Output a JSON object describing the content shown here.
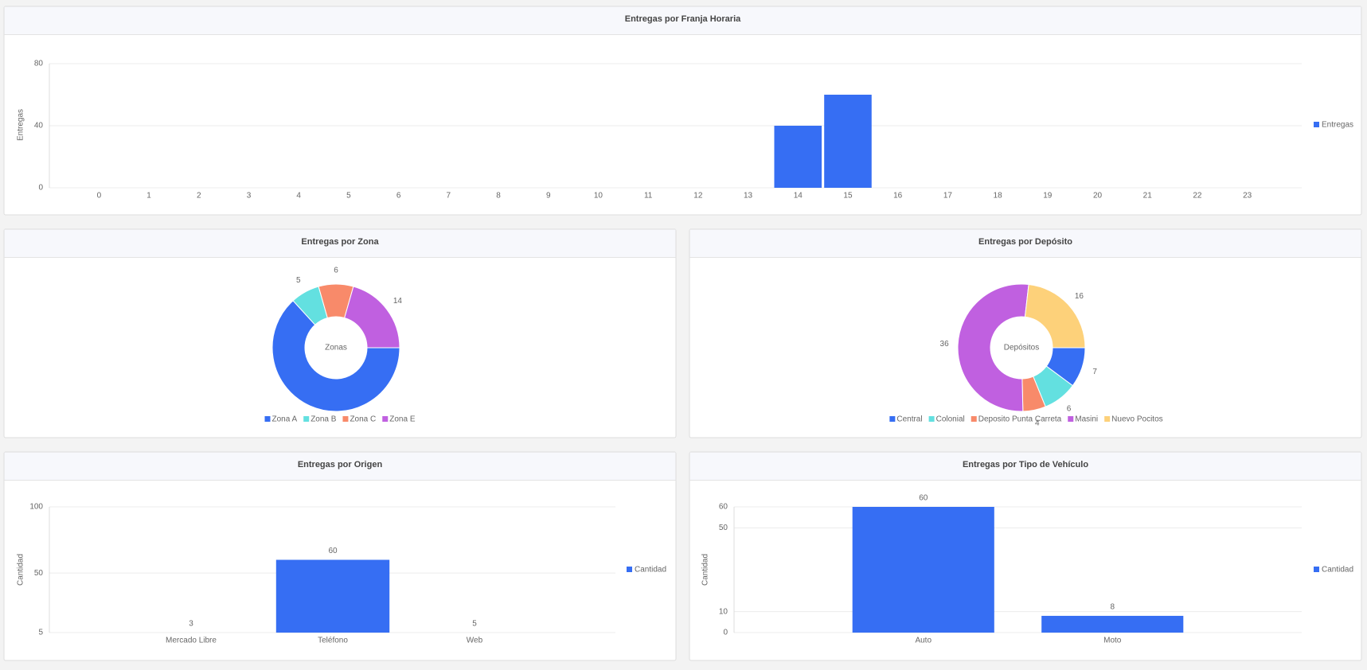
{
  "chart_data": [
    {
      "type": "bar",
      "title": "Entregas por Franja Horaria",
      "categories": [
        "0",
        "1",
        "2",
        "3",
        "4",
        "5",
        "6",
        "7",
        "8",
        "9",
        "10",
        "11",
        "12",
        "13",
        "14",
        "15",
        "16",
        "17",
        "18",
        "19",
        "20",
        "21",
        "22",
        "23"
      ],
      "series": [
        {
          "name": "Entregas",
          "color": "#366ef3",
          "values": [
            0,
            0,
            0,
            0,
            0,
            0,
            0,
            0,
            0,
            0,
            0,
            0,
            0,
            0,
            40,
            60,
            0,
            0,
            0,
            0,
            0,
            0,
            0,
            0
          ]
        }
      ],
      "y_label": "Entregas",
      "ylim": [
        0,
        80
      ],
      "yticks": [
        0,
        40,
        80
      ],
      "grid": true,
      "legend": "right",
      "data_labels": false
    },
    {
      "type": "pie",
      "title": "Entregas por Zona",
      "center_text": "Zonas",
      "categories": [
        "Zona A",
        "Zona B",
        "Zona C",
        "Zona E"
      ],
      "values": [
        43,
        5,
        6,
        14
      ],
      "value_labels": [
        null,
        "5",
        "6",
        "14"
      ],
      "colors": [
        "#366ef3",
        "#63e0e0",
        "#f88a6a",
        "#c060e0"
      ],
      "legend": "bottom"
    },
    {
      "type": "pie",
      "title": "Entregas por Depósito",
      "center_text": "Depósitos",
      "categories": [
        "Central",
        "Colonial",
        "Deposito Punta Carreta",
        "Masini",
        "Nuevo Pocitos"
      ],
      "values": [
        7,
        6,
        4,
        36,
        16
      ],
      "colors": [
        "#366ef3",
        "#63e0e0",
        "#f88a6a",
        "#c060e0",
        "#fdd17a"
      ],
      "legend": "bottom"
    },
    {
      "type": "bar",
      "title": "Entregas por Origen",
      "categories": [
        "Mercado Libre",
        "Teléfono",
        "Web"
      ],
      "series": [
        {
          "name": "Cantidad",
          "color": "#366ef3",
          "values": [
            3,
            60,
            5
          ]
        }
      ],
      "y_label": "Cantidad",
      "ylim": [
        5,
        100
      ],
      "yticks": [
        5,
        50,
        100
      ],
      "grid": true,
      "legend": "right",
      "data_labels": true
    },
    {
      "type": "bar",
      "title": "Entregas por Tipo de Vehículo",
      "categories": [
        "Auto",
        "Moto"
      ],
      "series": [
        {
          "name": "Cantidad",
          "color": "#366ef3",
          "values": [
            60,
            8
          ]
        }
      ],
      "y_label": "Cantidad",
      "ylim": [
        0,
        60
      ],
      "yticks": [
        0,
        10,
        50,
        60
      ],
      "grid": true,
      "legend": "right",
      "data_labels": true
    }
  ]
}
